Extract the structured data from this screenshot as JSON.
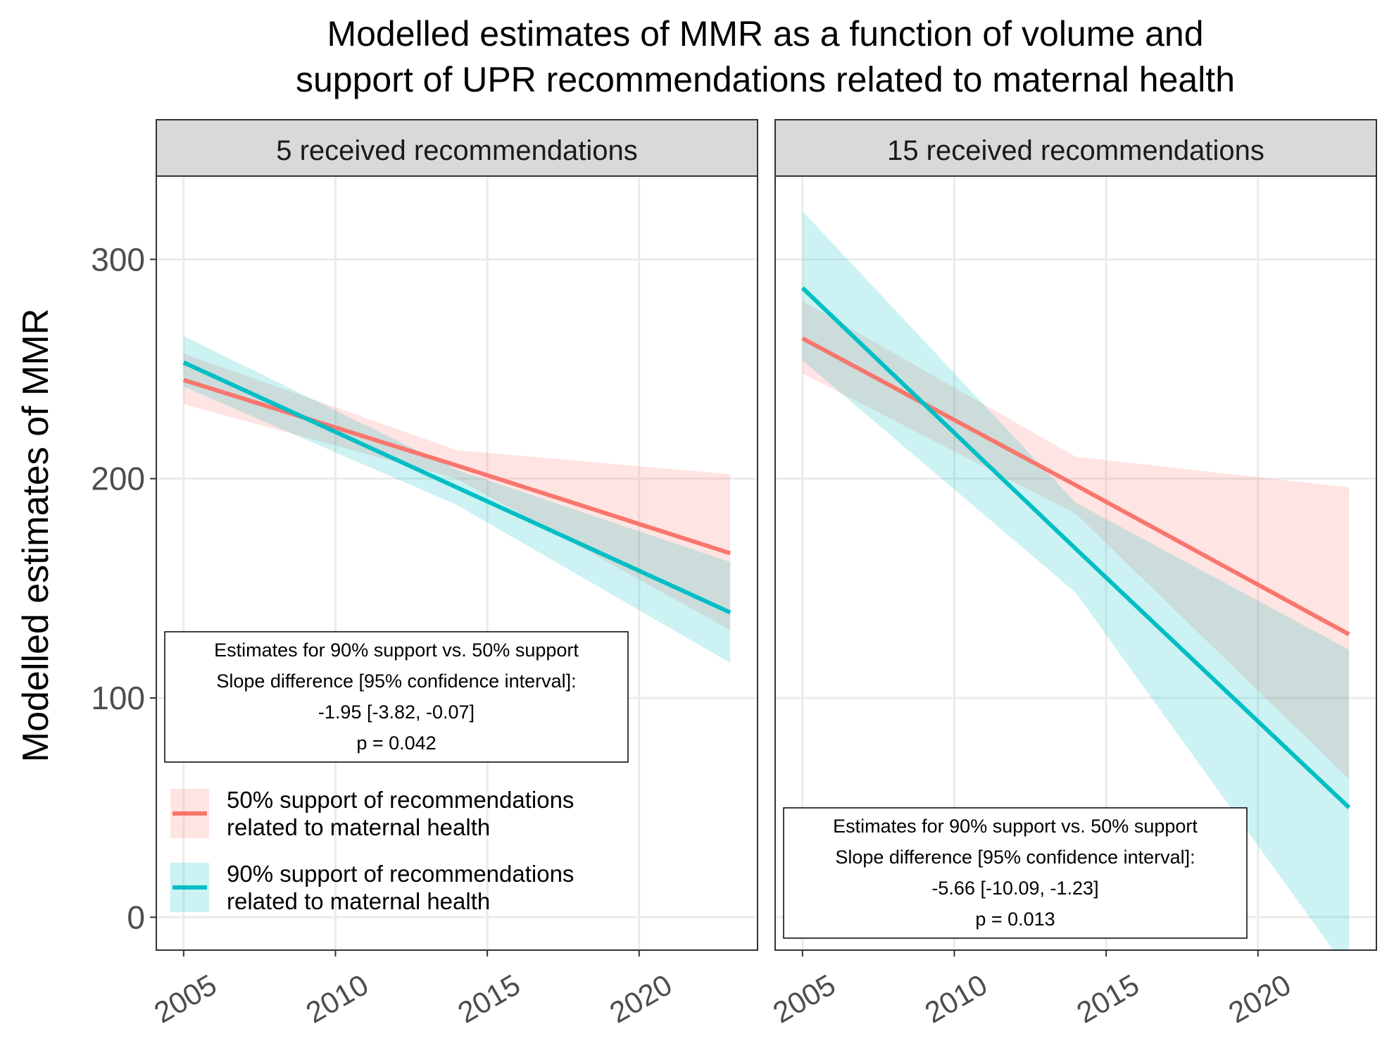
{
  "chart_data": {
    "type": "line",
    "title": "Modelled estimates of MMR as a function of volume and support of UPR recommendations related to maternal health",
    "title_lines": [
      "Modelled estimates of MMR as a function of volume and",
      "support of UPR recommendations related to maternal health"
    ],
    "ylabel": "Modelled estimates of MMR",
    "xlabel": "",
    "ylim": [
      -15,
      338
    ],
    "xlim": [
      2004.1,
      2023.9
    ],
    "y_ticks": [
      "0",
      "100",
      "200",
      "300"
    ],
    "x_ticks": [
      "2005",
      "2010",
      "2015",
      "2020"
    ],
    "grid": true,
    "colors": {
      "series_50": "#F8766D",
      "series_90": "#00BFC4"
    },
    "legend": {
      "placement": "bottom-left of first panel",
      "entries": [
        {
          "label_lines": [
            "50% support of recommendations",
            "related to maternal health"
          ],
          "color": "#F8766D"
        },
        {
          "label_lines": [
            "90% support of recommendations",
            "related to maternal health"
          ],
          "color": "#00BFC4"
        }
      ]
    },
    "panels": [
      {
        "strip": "5 received recommendations",
        "annotation": [
          "Estimates for 90% support vs. 50% support",
          "Slope difference [95% confidence interval]:",
          "-1.95 [-3.82, -0.07]",
          "p = 0.042"
        ],
        "series": [
          {
            "name": "50% support of recommendations related to maternal health",
            "x": [
              2005,
              2014,
              2023
            ],
            "y": [
              245,
              206,
              166
            ],
            "lower": [
              234,
              200,
              131
            ],
            "upper": [
              257,
              213,
              202
            ]
          },
          {
            "name": "90% support of recommendations related to maternal health",
            "x": [
              2005,
              2014,
              2023
            ],
            "y": [
              253,
              196,
              139
            ],
            "lower": [
              242,
              188,
              116
            ],
            "upper": [
              265,
              204,
              162
            ]
          }
        ]
      },
      {
        "strip": "15 received recommendations",
        "annotation": [
          "Estimates for 90% support vs. 50% support",
          "Slope difference [95% confidence interval]:",
          "-5.66 [-10.09, -1.23]",
          "p = 0.013"
        ],
        "series": [
          {
            "name": "50% support of recommendations related to maternal health",
            "x": [
              2005,
              2014,
              2023
            ],
            "y": [
              264,
              197,
              129
            ],
            "lower": [
              248,
              184,
              63
            ],
            "upper": [
              281,
              210,
              196
            ]
          },
          {
            "name": "90% support of recommendations related to maternal health",
            "x": [
              2005,
              2014,
              2023
            ],
            "y": [
              287,
              168,
              50
            ],
            "lower": [
              254,
              148,
              -25
            ],
            "upper": [
              322,
              189,
              122
            ]
          }
        ]
      }
    ]
  }
}
